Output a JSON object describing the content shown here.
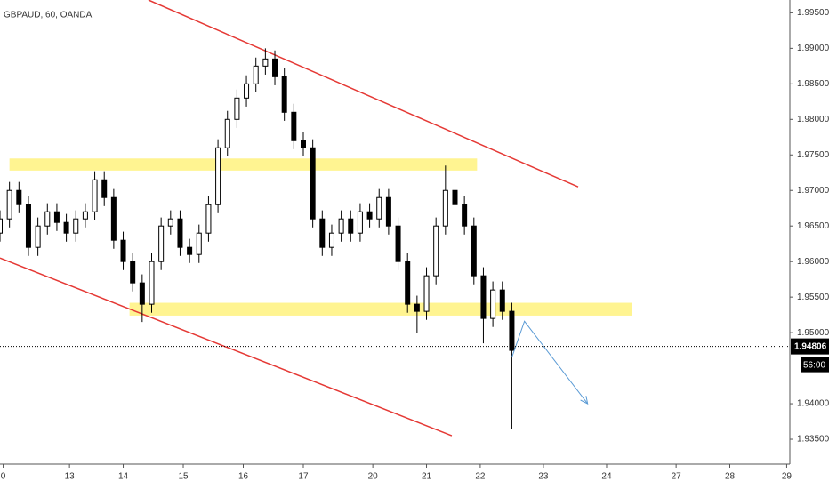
{
  "chart_data": {
    "type": "candlestick",
    "title": "GBPAUD, 60, OANDA",
    "x": [
      0,
      3,
      6,
      9,
      12,
      15,
      18,
      21,
      24,
      27,
      30,
      33,
      36,
      39,
      42,
      45,
      48,
      51,
      54,
      57,
      60,
      63,
      66,
      69,
      72,
      75,
      78,
      81,
      84,
      87,
      90,
      93,
      96,
      99,
      102,
      105,
      108,
      111,
      114,
      117,
      120,
      123,
      126,
      129,
      132,
      135,
      138,
      141,
      144,
      147,
      150,
      153,
      156,
      159,
      162
    ],
    "open": [
      1.964,
      1.966,
      1.97,
      1.968,
      1.962,
      1.965,
      1.967,
      1.9655,
      1.964,
      1.966,
      1.967,
      1.9715,
      1.969,
      1.963,
      1.96,
      1.957,
      1.954,
      1.96,
      1.965,
      1.966,
      1.962,
      1.961,
      1.964,
      1.968,
      1.976,
      1.98,
      1.983,
      1.985,
      1.9875,
      1.9885,
      1.986,
      1.981,
      1.977,
      1.976,
      1.966,
      1.962,
      1.964,
      1.966,
      1.964,
      1.967,
      1.966,
      1.969,
      1.965,
      1.96,
      1.954,
      1.953,
      1.958,
      1.965,
      1.97,
      1.968,
      1.965,
      1.958,
      1.952,
      1.956,
      1.953
    ],
    "high": [
      1.9672,
      1.9712,
      1.9712,
      1.9692,
      1.9662,
      1.9682,
      1.9682,
      1.9667,
      1.9672,
      1.9682,
      1.9727,
      1.9727,
      1.9702,
      1.9642,
      1.9612,
      1.9582,
      1.9612,
      1.9662,
      1.9672,
      1.9672,
      1.9632,
      1.9652,
      1.9692,
      1.9772,
      1.9812,
      1.9842,
      1.9862,
      1.9887,
      1.99,
      1.9897,
      1.9872,
      1.9822,
      1.9782,
      1.9772,
      1.9672,
      1.9652,
      1.9672,
      1.9672,
      1.9682,
      1.9682,
      1.9702,
      1.9702,
      1.9662,
      1.9612,
      1.9552,
      1.9592,
      1.9662,
      1.9735,
      1.9712,
      1.9692,
      1.9662,
      1.9592,
      1.9572,
      1.9572,
      1.9542
    ],
    "low": [
      1.9628,
      1.9648,
      1.9668,
      1.9608,
      1.9608,
      1.9638,
      1.9643,
      1.9628,
      1.9628,
      1.9648,
      1.9658,
      1.9678,
      1.9618,
      1.9588,
      1.9558,
      1.9515,
      1.9528,
      1.9588,
      1.9638,
      1.9608,
      1.9598,
      1.9598,
      1.9628,
      1.9668,
      1.9748,
      1.9788,
      1.9818,
      1.9838,
      1.9863,
      1.9848,
      1.9798,
      1.9758,
      1.9748,
      1.9648,
      1.9608,
      1.9608,
      1.9628,
      1.9628,
      1.9628,
      1.9648,
      1.9648,
      1.9638,
      1.9588,
      1.9528,
      1.95,
      1.9518,
      1.9568,
      1.9638,
      1.9668,
      1.9638,
      1.9568,
      1.9485,
      1.9508,
      1.9518,
      1.9365
    ],
    "close": [
      1.966,
      1.97,
      1.968,
      1.962,
      1.965,
      1.967,
      1.9655,
      1.964,
      1.966,
      1.967,
      1.9715,
      1.969,
      1.963,
      1.96,
      1.957,
      1.954,
      1.96,
      1.965,
      1.966,
      1.962,
      1.961,
      1.964,
      1.968,
      1.976,
      1.98,
      1.983,
      1.985,
      1.9875,
      1.9885,
      1.986,
      1.981,
      1.977,
      1.976,
      1.966,
      1.962,
      1.964,
      1.966,
      1.964,
      1.967,
      1.966,
      1.969,
      1.965,
      1.96,
      1.954,
      1.953,
      1.958,
      1.965,
      1.97,
      1.968,
      1.965,
      1.958,
      1.952,
      1.956,
      1.953,
      1.9475
    ],
    "up_color": "#ffffff",
    "down_color": "#000000",
    "xlim": [
      0,
      250
    ],
    "xticks": [
      {
        "value": 1,
        "label": "0"
      },
      {
        "value": 22,
        "label": "13"
      },
      {
        "value": 39,
        "label": "14"
      },
      {
        "value": 58,
        "label": "15"
      },
      {
        "value": 77,
        "label": "16"
      },
      {
        "value": 96,
        "label": "17"
      },
      {
        "value": 118,
        "label": "20"
      },
      {
        "value": 135,
        "label": "21"
      },
      {
        "value": 152,
        "label": "22"
      },
      {
        "value": 172,
        "label": "23"
      },
      {
        "value": 192,
        "label": "24"
      },
      {
        "value": 214,
        "label": "27"
      },
      {
        "value": 231,
        "label": "28"
      },
      {
        "value": 249,
        "label": "29"
      }
    ],
    "ylim": [
      1.9315,
      1.9968
    ],
    "yticks": [
      {
        "value": 1.935,
        "label": "1.93500"
      },
      {
        "value": 1.94,
        "label": "1.94000"
      },
      {
        "value": 1.95,
        "label": "1.95000"
      },
      {
        "value": 1.955,
        "label": "1.95500"
      },
      {
        "value": 1.96,
        "label": "1.96000"
      },
      {
        "value": 1.965,
        "label": "1.96500"
      },
      {
        "value": 1.97,
        "label": "1.97000"
      },
      {
        "value": 1.975,
        "label": "1.97500"
      },
      {
        "value": 1.98,
        "label": "1.98000"
      },
      {
        "value": 1.985,
        "label": "1.98500"
      },
      {
        "value": 1.99,
        "label": "1.99000"
      },
      {
        "value": 1.995,
        "label": "1.99500"
      }
    ],
    "last_price": {
      "value": 1.94806,
      "label": "1.94806"
    },
    "countdown": "56:00",
    "zones": [
      {
        "color": "#fff176",
        "x": [
          3,
          151
        ],
        "prices": [
          1.9728,
          1.9745
        ]
      },
      {
        "color": "#fff176",
        "x": [
          41,
          200
        ],
        "prices": [
          1.9524,
          1.9542
        ]
      }
    ],
    "trendlines": [
      {
        "color": "#e53935",
        "x": [
          47,
          183
        ],
        "prices": [
          1.9968,
          1.9705
        ]
      },
      {
        "color": "#e53935",
        "x": [
          0,
          143
        ],
        "prices": [
          1.9605,
          1.9355
        ]
      }
    ],
    "arrow": {
      "color": "#5b9bd5",
      "x": [
        162,
        166,
        186
      ],
      "prices": [
        1.9465,
        1.9516,
        1.94
      ]
    }
  }
}
